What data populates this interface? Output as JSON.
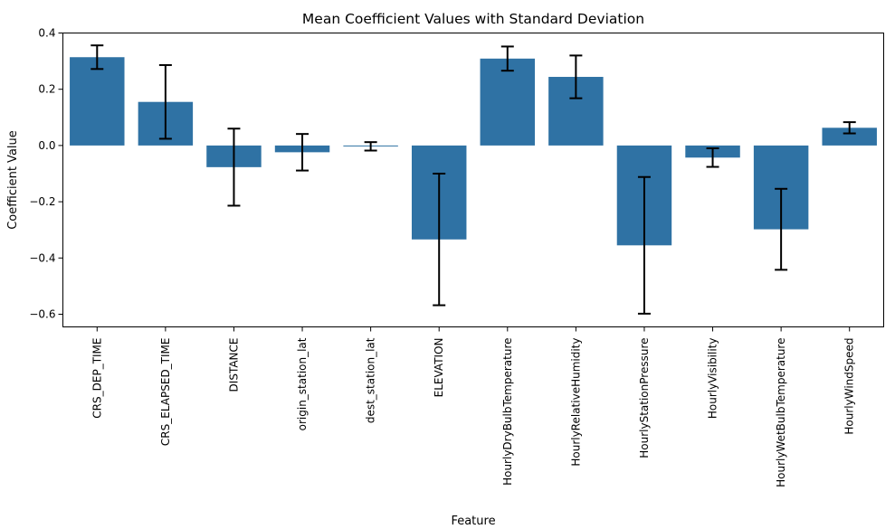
{
  "chart_data": {
    "type": "bar",
    "title": "Mean Coefficient Values with Standard Deviation",
    "xlabel": "Feature",
    "ylabel": "Coefficient Value",
    "categories": [
      "CRS_DEP_TIME",
      "CRS_ELAPSED_TIME",
      "DISTANCE",
      "origin_station_lat",
      "dest_station_lat",
      "ELEVATION",
      "HourlyDryBulbTemperature",
      "HourlyRelativeHumidity",
      "HourlyStationPressure",
      "HourlyVisibility",
      "HourlyWetBulbTemperature",
      "HourlyWindSpeed"
    ],
    "values": [
      0.314,
      0.155,
      -0.077,
      -0.024,
      -0.003,
      -0.334,
      0.309,
      0.244,
      -0.355,
      -0.043,
      -0.298,
      0.063
    ],
    "std": [
      0.042,
      0.131,
      0.137,
      0.065,
      0.015,
      0.234,
      0.043,
      0.076,
      0.243,
      0.033,
      0.144,
      0.02
    ],
    "ylim": [
      -0.645,
      0.4
    ],
    "yticks": [
      0.4,
      0.2,
      0.0,
      -0.2,
      -0.4,
      -0.6
    ],
    "ytick_labels": [
      "0.4",
      "0.2",
      "0.0",
      "−0.2",
      "−0.4",
      "−0.6"
    ],
    "bar_color": "#2f72a4",
    "error_bar_color": "#000000",
    "grid": false,
    "legend": false
  }
}
